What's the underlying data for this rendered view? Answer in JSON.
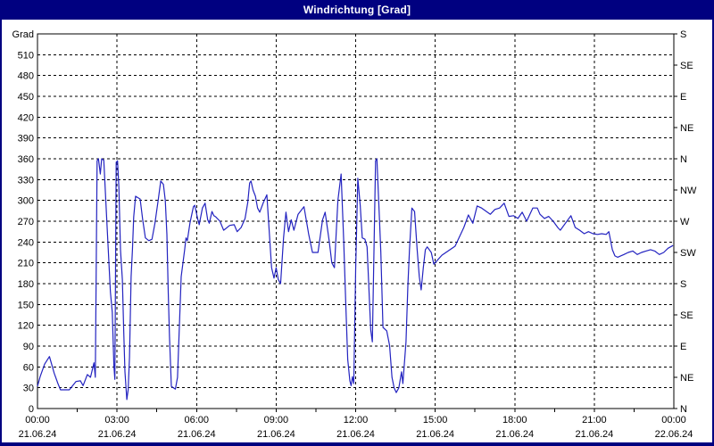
{
  "window": {
    "title": "Windrichtung [Grad]"
  },
  "colors": {
    "frame_bg": "#000080",
    "title_text": "#ffffff",
    "plot_bg": "#ffffff",
    "axis": "#000000",
    "grid": "#000000",
    "text": "#000000",
    "line": "#2323c0"
  },
  "chart_data": {
    "type": "line",
    "title": "Windrichtung [Grad]",
    "ylabel": "Grad",
    "ylim": [
      0,
      540
    ],
    "y_tick_step": 30,
    "y_left_ticks": [
      0,
      30,
      60,
      90,
      120,
      150,
      180,
      210,
      240,
      270,
      300,
      330,
      360,
      390,
      420,
      450,
      480,
      510
    ],
    "y_right_labels": [
      {
        "value": 0,
        "label": "N"
      },
      {
        "value": 45,
        "label": "NE"
      },
      {
        "value": 90,
        "label": "E"
      },
      {
        "value": 135,
        "label": "SE"
      },
      {
        "value": 180,
        "label": "S"
      },
      {
        "value": 225,
        "label": "SW"
      },
      {
        "value": 270,
        "label": "W"
      },
      {
        "value": 315,
        "label": "NW"
      },
      {
        "value": 360,
        "label": "N"
      },
      {
        "value": 405,
        "label": "NE"
      },
      {
        "value": 450,
        "label": "E"
      },
      {
        "value": 495,
        "label": "SE"
      },
      {
        "value": 540,
        "label": "S"
      }
    ],
    "xlim_hours": [
      0,
      24
    ],
    "x_minor_tick_step_hours": 1.5,
    "x_ticks": [
      {
        "hours": 0,
        "time": "00:00",
        "date": "21.06.24"
      },
      {
        "hours": 3,
        "time": "03:00",
        "date": "21.06.24"
      },
      {
        "hours": 6,
        "time": "06:00",
        "date": "21.06.24"
      },
      {
        "hours": 9,
        "time": "09:00",
        "date": "21.06.24"
      },
      {
        "hours": 12,
        "time": "12:00",
        "date": "21.06.24"
      },
      {
        "hours": 15,
        "time": "15:00",
        "date": "21.06.24"
      },
      {
        "hours": 18,
        "time": "18:00",
        "date": "21.06.24"
      },
      {
        "hours": 21,
        "time": "21:00",
        "date": "21.06.24"
      },
      {
        "hours": 24,
        "time": "00:00",
        "date": "22.06.24"
      }
    ],
    "grid": "dashed",
    "legend": "none",
    "series": [
      {
        "name": "Windrichtung",
        "unit": "Grad",
        "points": [
          [
            0,
            32
          ],
          [
            0.1,
            46
          ],
          [
            0.27,
            64
          ],
          [
            0.45,
            75
          ],
          [
            0.63,
            51
          ],
          [
            0.77,
            36
          ],
          [
            0.87,
            27
          ],
          [
            1.2,
            27
          ],
          [
            1.45,
            39
          ],
          [
            1.62,
            40
          ],
          [
            1.72,
            33
          ],
          [
            1.88,
            49
          ],
          [
            2,
            45
          ],
          [
            2.13,
            66
          ],
          [
            2.18,
            45
          ],
          [
            2.25,
            357
          ],
          [
            2.3,
            360
          ],
          [
            2.37,
            338
          ],
          [
            2.42,
            360
          ],
          [
            2.5,
            358
          ],
          [
            2.62,
            267
          ],
          [
            2.67,
            229
          ],
          [
            2.75,
            168
          ],
          [
            2.82,
            139
          ],
          [
            2.88,
            62
          ],
          [
            2.92,
            42
          ],
          [
            2.97,
            355
          ],
          [
            3.02,
            357
          ],
          [
            3.07,
            319
          ],
          [
            3.13,
            229
          ],
          [
            3.2,
            186
          ],
          [
            3.25,
            113
          ],
          [
            3.3,
            53
          ],
          [
            3.37,
            13
          ],
          [
            3.42,
            27
          ],
          [
            3.47,
            74
          ],
          [
            3.53,
            190
          ],
          [
            3.58,
            229
          ],
          [
            3.63,
            276
          ],
          [
            3.7,
            306
          ],
          [
            3.87,
            302
          ],
          [
            3.97,
            272
          ],
          [
            4.07,
            246
          ],
          [
            4.2,
            242
          ],
          [
            4.32,
            244
          ],
          [
            4.43,
            267
          ],
          [
            4.55,
            300
          ],
          [
            4.65,
            328
          ],
          [
            4.75,
            323
          ],
          [
            4.82,
            300
          ],
          [
            4.88,
            251
          ],
          [
            4.93,
            168
          ],
          [
            4.98,
            104
          ],
          [
            5.05,
            32
          ],
          [
            5.2,
            28
          ],
          [
            5.28,
            45
          ],
          [
            5.42,
            190
          ],
          [
            5.55,
            229
          ],
          [
            5.6,
            246
          ],
          [
            5.65,
            242
          ],
          [
            5.75,
            267
          ],
          [
            5.88,
            291
          ],
          [
            5.93,
            293
          ],
          [
            6.05,
            272
          ],
          [
            6.1,
            265
          ],
          [
            6.22,
            289
          ],
          [
            6.32,
            296
          ],
          [
            6.42,
            272
          ],
          [
            6.48,
            267
          ],
          [
            6.58,
            284
          ],
          [
            6.65,
            278
          ],
          [
            6.73,
            276
          ],
          [
            6.78,
            274
          ],
          [
            6.88,
            270
          ],
          [
            7.02,
            257
          ],
          [
            7.25,
            264
          ],
          [
            7.42,
            265
          ],
          [
            7.53,
            255
          ],
          [
            7.68,
            261
          ],
          [
            7.83,
            274
          ],
          [
            7.93,
            297
          ],
          [
            8,
            325
          ],
          [
            8.05,
            328
          ],
          [
            8.13,
            315
          ],
          [
            8.22,
            306
          ],
          [
            8.3,
            289
          ],
          [
            8.38,
            283
          ],
          [
            8.52,
            297
          ],
          [
            8.65,
            308
          ],
          [
            8.83,
            203
          ],
          [
            8.92,
            188
          ],
          [
            9,
            203
          ],
          [
            9.08,
            186
          ],
          [
            9.17,
            180
          ],
          [
            9.28,
            246
          ],
          [
            9.37,
            283
          ],
          [
            9.47,
            255
          ],
          [
            9.57,
            272
          ],
          [
            9.67,
            257
          ],
          [
            9.83,
            280
          ],
          [
            10.05,
            291
          ],
          [
            10.23,
            251
          ],
          [
            10.37,
            225
          ],
          [
            10.58,
            225
          ],
          [
            10.75,
            272
          ],
          [
            10.85,
            283
          ],
          [
            11,
            242
          ],
          [
            11.1,
            210
          ],
          [
            11.2,
            203
          ],
          [
            11.33,
            300
          ],
          [
            11.45,
            338
          ],
          [
            11.55,
            242
          ],
          [
            11.63,
            148
          ],
          [
            11.7,
            71
          ],
          [
            11.78,
            40
          ],
          [
            11.83,
            33
          ],
          [
            11.88,
            46
          ],
          [
            11.93,
            36
          ],
          [
            12,
            200
          ],
          [
            12.08,
            332
          ],
          [
            12.17,
            293
          ],
          [
            12.25,
            246
          ],
          [
            12.35,
            244
          ],
          [
            12.43,
            233
          ],
          [
            12.57,
            113
          ],
          [
            12.63,
            96
          ],
          [
            12.75,
            357
          ],
          [
            12.8,
            360
          ],
          [
            12.9,
            272
          ],
          [
            12.95,
            225
          ],
          [
            13.03,
            117
          ],
          [
            13.17,
            112
          ],
          [
            13.28,
            91
          ],
          [
            13.37,
            45
          ],
          [
            13.45,
            30
          ],
          [
            13.53,
            23
          ],
          [
            13.63,
            30
          ],
          [
            13.73,
            53
          ],
          [
            13.78,
            36
          ],
          [
            13.9,
            96
          ],
          [
            13.97,
            177
          ],
          [
            14.03,
            229
          ],
          [
            14.12,
            289
          ],
          [
            14.22,
            284
          ],
          [
            14.32,
            229
          ],
          [
            14.4,
            190
          ],
          [
            14.47,
            171
          ],
          [
            14.55,
            203
          ],
          [
            14.63,
            229
          ],
          [
            14.7,
            233
          ],
          [
            14.85,
            225
          ],
          [
            14.95,
            208
          ],
          [
            15.25,
            221
          ],
          [
            15.75,
            234
          ],
          [
            16.08,
            261
          ],
          [
            16.25,
            279
          ],
          [
            16.42,
            267
          ],
          [
            16.58,
            292
          ],
          [
            16.75,
            289
          ],
          [
            17.08,
            280
          ],
          [
            17.25,
            287
          ],
          [
            17.43,
            289
          ],
          [
            17.6,
            296
          ],
          [
            17.78,
            277
          ],
          [
            17.95,
            278
          ],
          [
            18.12,
            274
          ],
          [
            18.28,
            283
          ],
          [
            18.45,
            270
          ],
          [
            18.68,
            289
          ],
          [
            18.85,
            289
          ],
          [
            18.95,
            280
          ],
          [
            19.12,
            274
          ],
          [
            19.28,
            277
          ],
          [
            19.45,
            270
          ],
          [
            19.62,
            261
          ],
          [
            19.72,
            257
          ],
          [
            20.12,
            278
          ],
          [
            20.28,
            261
          ],
          [
            20.45,
            257
          ],
          [
            20.62,
            252
          ],
          [
            20.78,
            255
          ],
          [
            20.95,
            252
          ],
          [
            21.12,
            251
          ],
          [
            21.28,
            252
          ],
          [
            21.45,
            251
          ],
          [
            21.55,
            255
          ],
          [
            21.68,
            229
          ],
          [
            21.78,
            220
          ],
          [
            21.88,
            218
          ],
          [
            22.12,
            222
          ],
          [
            22.28,
            225
          ],
          [
            22.45,
            227
          ],
          [
            22.62,
            222
          ],
          [
            22.78,
            225
          ],
          [
            22.95,
            227
          ],
          [
            23.12,
            229
          ],
          [
            23.28,
            227
          ],
          [
            23.45,
            222
          ],
          [
            23.62,
            225
          ],
          [
            23.78,
            231
          ],
          [
            23.97,
            235
          ]
        ]
      }
    ]
  }
}
